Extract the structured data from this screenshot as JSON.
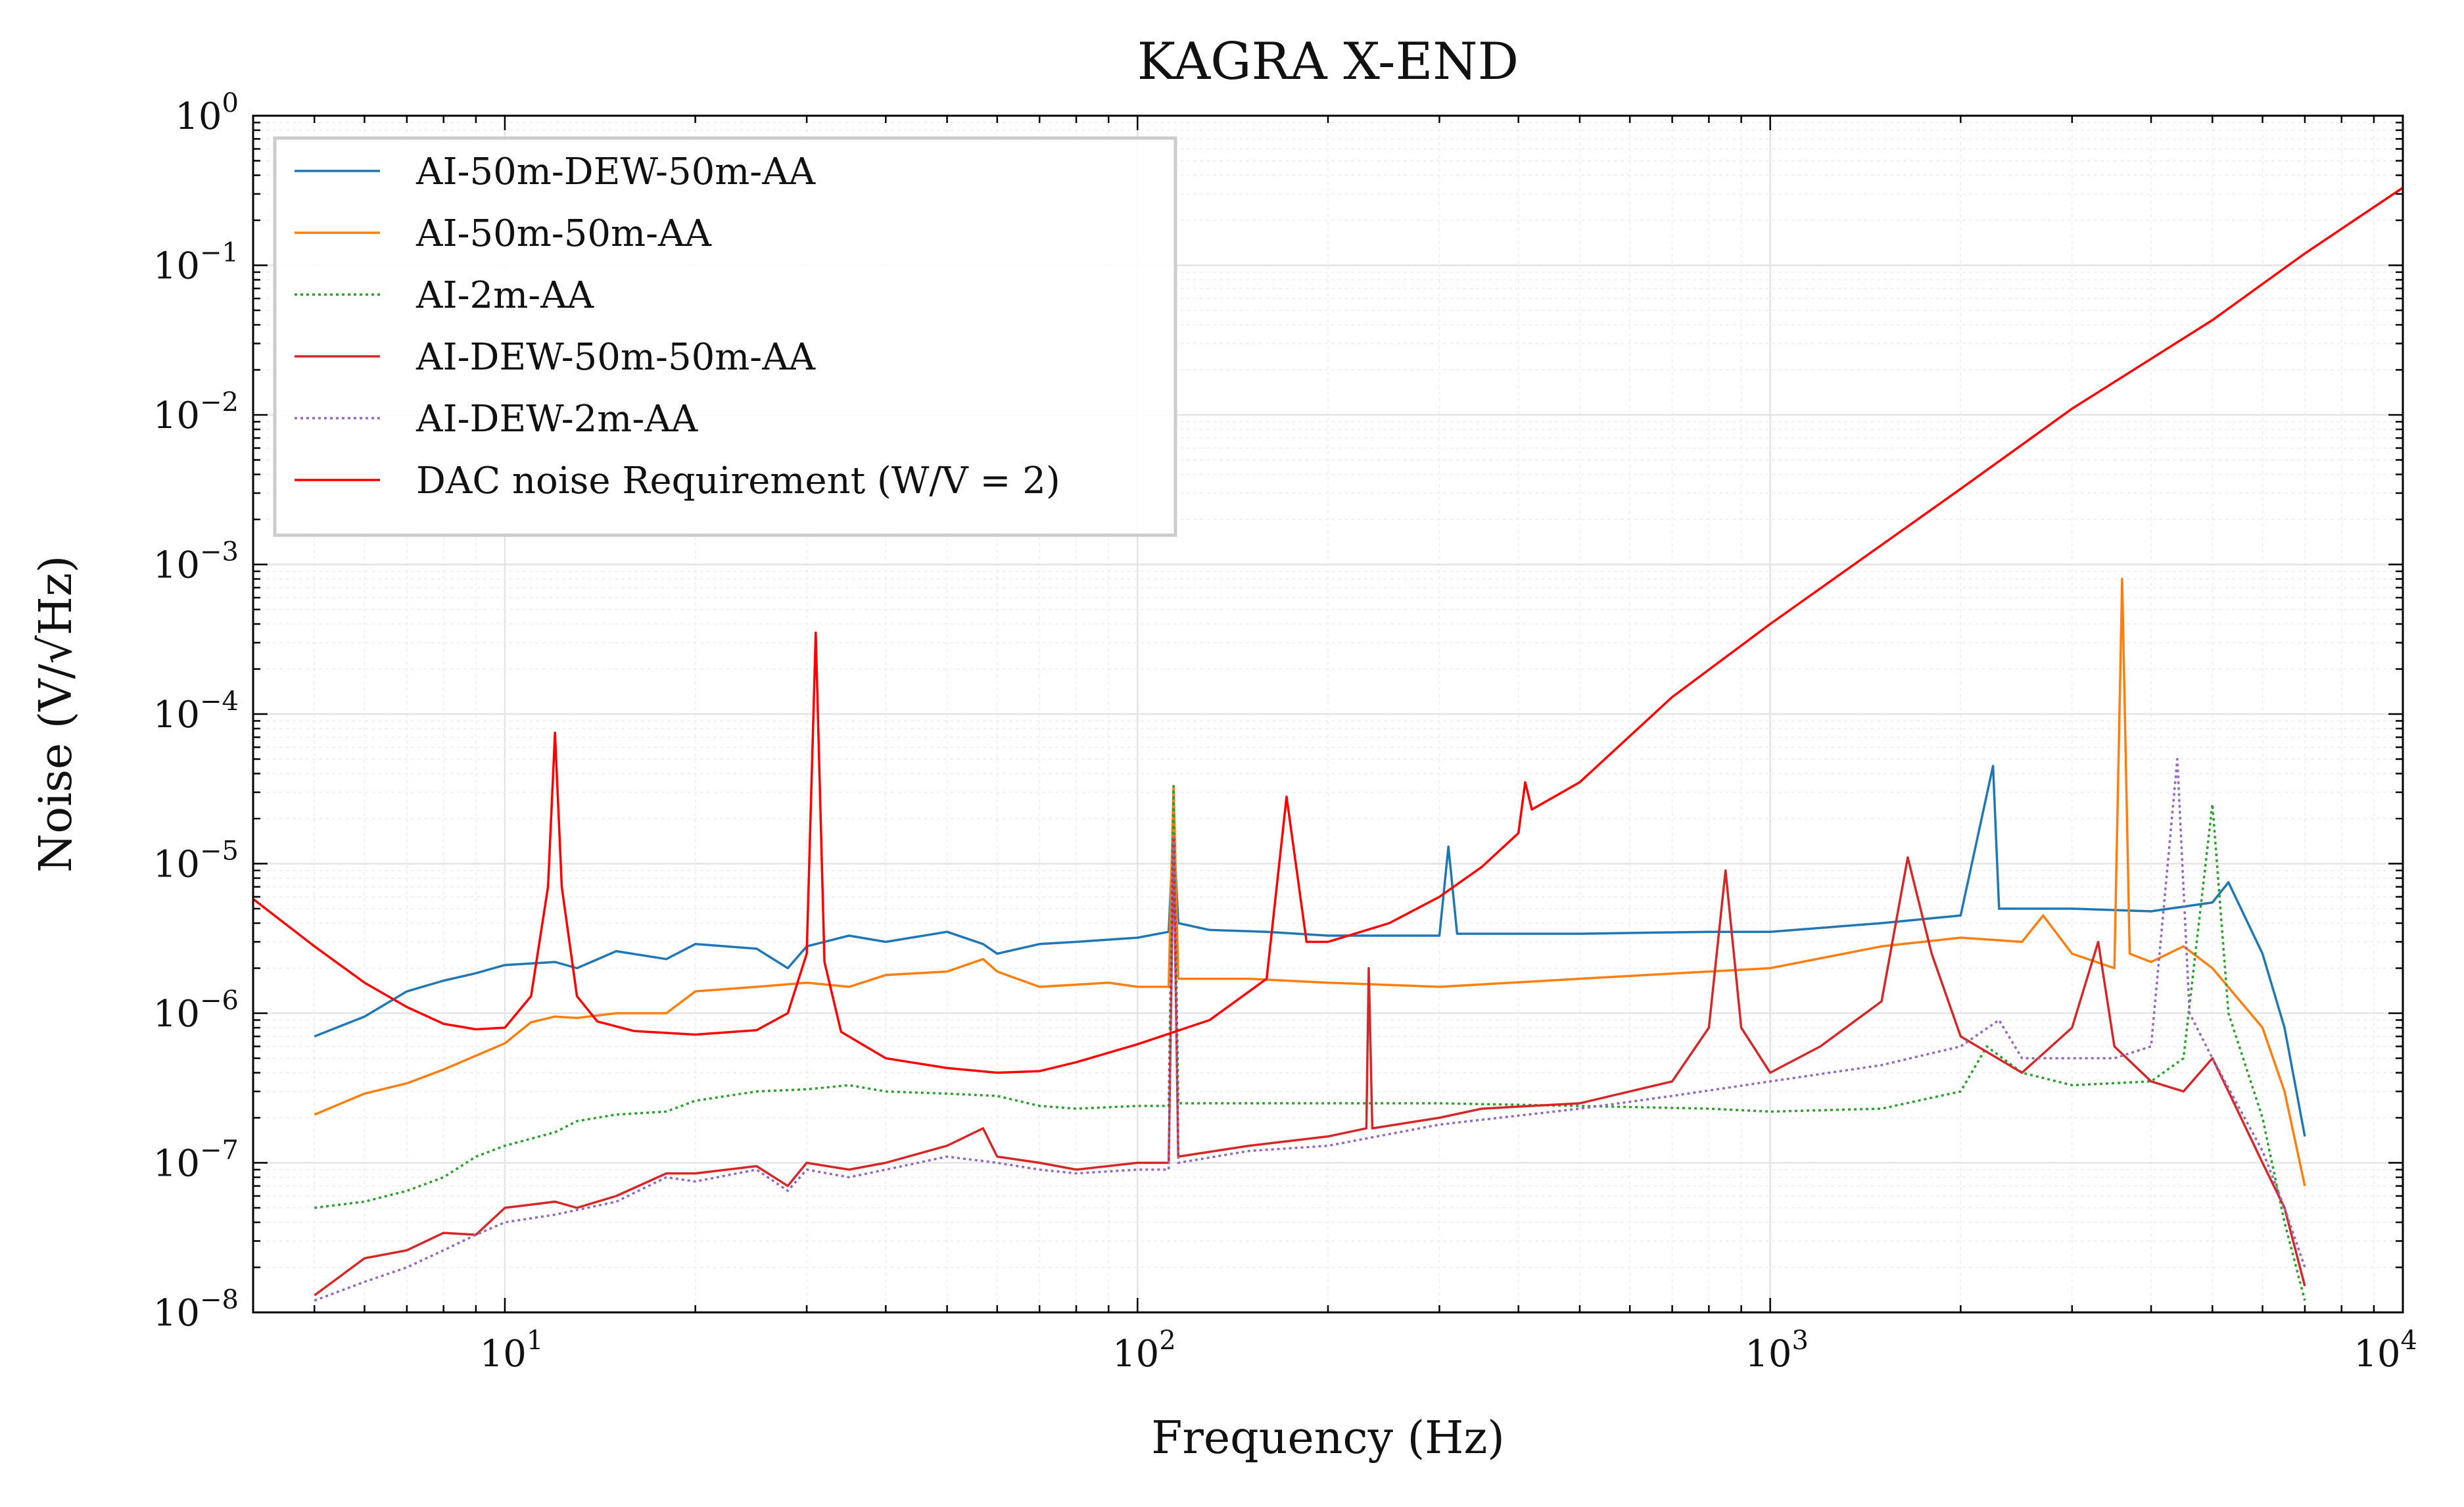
{
  "chart_data": {
    "type": "line",
    "title": "KAGRA X-END",
    "xlabel": "Frequency (Hz)",
    "ylabel": "Noise (V/√Hz)",
    "xscale": "log",
    "yscale": "log",
    "xlim": [
      4,
      10000
    ],
    "ylim": [
      1e-08,
      1
    ],
    "x_ticks": [
      {
        "value": 10,
        "base": "10",
        "exp": "1"
      },
      {
        "value": 100,
        "base": "10",
        "exp": "2"
      },
      {
        "value": 1000,
        "base": "10",
        "exp": "3"
      },
      {
        "value": 10000,
        "base": "10",
        "exp": "4"
      }
    ],
    "y_ticks": [
      {
        "value": 1e-08,
        "base": "10",
        "exp": "−8"
      },
      {
        "value": 1e-07,
        "base": "10",
        "exp": "−7"
      },
      {
        "value": 1e-06,
        "base": "10",
        "exp": "−6"
      },
      {
        "value": 1e-05,
        "base": "10",
        "exp": "−5"
      },
      {
        "value": 0.0001,
        "base": "10",
        "exp": "−4"
      },
      {
        "value": 0.001,
        "base": "10",
        "exp": "−3"
      },
      {
        "value": 0.01,
        "base": "10",
        "exp": "−2"
      },
      {
        "value": 0.1,
        "base": "10",
        "exp": "−1"
      },
      {
        "value": 1,
        "base": "10",
        "exp": "0"
      }
    ],
    "grid": true,
    "legend_position": "top-left",
    "series": [
      {
        "name": "AI-50m-DEW-50m-AA",
        "color": "#1f77b4",
        "style": "solid",
        "points": [
          [
            5,
            7e-07
          ],
          [
            6,
            9.5e-07
          ],
          [
            7,
            1.4e-06
          ],
          [
            8,
            1.65e-06
          ],
          [
            9,
            1.85e-06
          ],
          [
            10,
            2.1e-06
          ],
          [
            12,
            2.2e-06
          ],
          [
            13,
            2e-06
          ],
          [
            15,
            2.6e-06
          ],
          [
            18,
            2.3e-06
          ],
          [
            20,
            2.9e-06
          ],
          [
            25,
            2.7e-06
          ],
          [
            28,
            2e-06
          ],
          [
            30,
            2.8e-06
          ],
          [
            35,
            3.3e-06
          ],
          [
            40,
            3e-06
          ],
          [
            50,
            3.5e-06
          ],
          [
            57,
            2.9e-06
          ],
          [
            60,
            2.5e-06
          ],
          [
            70,
            2.9e-06
          ],
          [
            80,
            3e-06
          ],
          [
            100,
            3.2e-06
          ],
          [
            112,
            3.5e-06
          ],
          [
            114,
            1.7e-05
          ],
          [
            116,
            4e-06
          ],
          [
            130,
            3.6e-06
          ],
          [
            160,
            3.5e-06
          ],
          [
            200,
            3.3e-06
          ],
          [
            300,
            3.3e-06
          ],
          [
            310,
            1.3e-05
          ],
          [
            320,
            3.4e-06
          ],
          [
            500,
            3.4e-06
          ],
          [
            800,
            3.5e-06
          ],
          [
            1000,
            3.5e-06
          ],
          [
            1500,
            4e-06
          ],
          [
            2000,
            4.5e-06
          ],
          [
            2250,
            4.5e-05
          ],
          [
            2300,
            5e-06
          ],
          [
            3000,
            5e-06
          ],
          [
            4000,
            4.8e-06
          ],
          [
            5000,
            5.5e-06
          ],
          [
            5300,
            7.5e-06
          ],
          [
            6000,
            2.5e-06
          ],
          [
            6500,
            8e-07
          ],
          [
            7000,
            1.5e-07
          ]
        ]
      },
      {
        "name": "AI-50m-50m-AA",
        "color": "#ff7f0e",
        "style": "solid",
        "points": [
          [
            5,
            2.1e-07
          ],
          [
            6,
            2.9e-07
          ],
          [
            7,
            3.4e-07
          ],
          [
            8,
            4.2e-07
          ],
          [
            9,
            5.2e-07
          ],
          [
            10,
            6.3e-07
          ],
          [
            11,
            8.7e-07
          ],
          [
            12,
            9.5e-07
          ],
          [
            13,
            9.3e-07
          ],
          [
            15,
            1e-06
          ],
          [
            18,
            1e-06
          ],
          [
            20,
            1.4e-06
          ],
          [
            25,
            1.5e-06
          ],
          [
            30,
            1.6e-06
          ],
          [
            35,
            1.5e-06
          ],
          [
            40,
            1.8e-06
          ],
          [
            50,
            1.9e-06
          ],
          [
            57,
            2.3e-06
          ],
          [
            60,
            1.9e-06
          ],
          [
            70,
            1.5e-06
          ],
          [
            90,
            1.6e-06
          ],
          [
            100,
            1.5e-06
          ],
          [
            112,
            1.5e-06
          ],
          [
            114,
            3.3e-05
          ],
          [
            116,
            1.7e-06
          ],
          [
            150,
            1.7e-06
          ],
          [
            200,
            1.6e-06
          ],
          [
            300,
            1.5e-06
          ],
          [
            500,
            1.7e-06
          ],
          [
            800,
            1.9e-06
          ],
          [
            1000,
            2e-06
          ],
          [
            1500,
            2.8e-06
          ],
          [
            2000,
            3.2e-06
          ],
          [
            2500,
            3e-06
          ],
          [
            2700,
            4.5e-06
          ],
          [
            3000,
            2.5e-06
          ],
          [
            3500,
            2e-06
          ],
          [
            3600,
            0.0008
          ],
          [
            3700,
            2.5e-06
          ],
          [
            4000,
            2.2e-06
          ],
          [
            4500,
            2.8e-06
          ],
          [
            5000,
            2e-06
          ],
          [
            6000,
            8e-07
          ],
          [
            6500,
            3e-07
          ],
          [
            7000,
            7e-08
          ]
        ]
      },
      {
        "name": "AI-2m-AA",
        "color": "#2ca02c",
        "style": "dotted",
        "points": [
          [
            5,
            5e-08
          ],
          [
            6,
            5.5e-08
          ],
          [
            7,
            6.5e-08
          ],
          [
            8,
            8e-08
          ],
          [
            9,
            1.1e-07
          ],
          [
            10,
            1.3e-07
          ],
          [
            12,
            1.6e-07
          ],
          [
            13,
            1.9e-07
          ],
          [
            15,
            2.1e-07
          ],
          [
            18,
            2.2e-07
          ],
          [
            20,
            2.6e-07
          ],
          [
            25,
            3e-07
          ],
          [
            30,
            3.1e-07
          ],
          [
            35,
            3.3e-07
          ],
          [
            40,
            3e-07
          ],
          [
            50,
            2.9e-07
          ],
          [
            60,
            2.8e-07
          ],
          [
            70,
            2.4e-07
          ],
          [
            80,
            2.3e-07
          ],
          [
            100,
            2.4e-07
          ],
          [
            112,
            2.4e-07
          ],
          [
            114,
            3.3e-05
          ],
          [
            116,
            2.5e-07
          ],
          [
            150,
            2.5e-07
          ],
          [
            200,
            2.5e-07
          ],
          [
            300,
            2.5e-07
          ],
          [
            500,
            2.4e-07
          ],
          [
            800,
            2.3e-07
          ],
          [
            1000,
            2.2e-07
          ],
          [
            1500,
            2.3e-07
          ],
          [
            2000,
            3e-07
          ],
          [
            2200,
            6e-07
          ],
          [
            2500,
            4e-07
          ],
          [
            3000,
            3.3e-07
          ],
          [
            4000,
            3.5e-07
          ],
          [
            4500,
            5e-07
          ],
          [
            5000,
            2.5e-05
          ],
          [
            5300,
            1e-06
          ],
          [
            6000,
            2e-07
          ],
          [
            6500,
            4e-08
          ],
          [
            7000,
            1.2e-08
          ]
        ]
      },
      {
        "name": "AI-DEW-50m-50m-AA",
        "color": "#d62728",
        "style": "solid",
        "points": [
          [
            5,
            1.3e-08
          ],
          [
            6,
            2.3e-08
          ],
          [
            7,
            2.6e-08
          ],
          [
            8,
            3.4e-08
          ],
          [
            9,
            3.3e-08
          ],
          [
            10,
            5e-08
          ],
          [
            12,
            5.5e-08
          ],
          [
            13,
            5e-08
          ],
          [
            15,
            6e-08
          ],
          [
            18,
            8.5e-08
          ],
          [
            20,
            8.5e-08
          ],
          [
            25,
            9.5e-08
          ],
          [
            28,
            7e-08
          ],
          [
            30,
            1e-07
          ],
          [
            35,
            9e-08
          ],
          [
            40,
            1e-07
          ],
          [
            50,
            1.3e-07
          ],
          [
            57,
            1.7e-07
          ],
          [
            60,
            1.1e-07
          ],
          [
            70,
            1e-07
          ],
          [
            80,
            9e-08
          ],
          [
            100,
            1e-07
          ],
          [
            112,
            1e-07
          ],
          [
            114,
            1.5e-05
          ],
          [
            116,
            1.1e-07
          ],
          [
            150,
            1.3e-07
          ],
          [
            200,
            1.5e-07
          ],
          [
            230,
            1.7e-07
          ],
          [
            232,
            2e-06
          ],
          [
            235,
            1.7e-07
          ],
          [
            300,
            2e-07
          ],
          [
            350,
            2.3e-07
          ],
          [
            500,
            2.5e-07
          ],
          [
            700,
            3.5e-07
          ],
          [
            800,
            8e-07
          ],
          [
            850,
            9e-06
          ],
          [
            900,
            8e-07
          ],
          [
            1000,
            4e-07
          ],
          [
            1200,
            6e-07
          ],
          [
            1500,
            1.2e-06
          ],
          [
            1650,
            1.1e-05
          ],
          [
            1800,
            2.5e-06
          ],
          [
            2000,
            7e-07
          ],
          [
            2500,
            4e-07
          ],
          [
            3000,
            8e-07
          ],
          [
            3300,
            3e-06
          ],
          [
            3500,
            6e-07
          ],
          [
            4000,
            3.5e-07
          ],
          [
            4500,
            3e-07
          ],
          [
            5000,
            5e-07
          ],
          [
            5300,
            3e-07
          ],
          [
            6000,
            1e-07
          ],
          [
            6500,
            5e-08
          ],
          [
            7000,
            1.5e-08
          ]
        ]
      },
      {
        "name": "AI-DEW-2m-AA",
        "color": "#9467bd",
        "style": "dotted",
        "points": [
          [
            5,
            1.2e-08
          ],
          [
            6,
            1.6e-08
          ],
          [
            7,
            2e-08
          ],
          [
            8,
            2.6e-08
          ],
          [
            9,
            3.3e-08
          ],
          [
            10,
            4e-08
          ],
          [
            12,
            4.5e-08
          ],
          [
            15,
            5.5e-08
          ],
          [
            18,
            8e-08
          ],
          [
            20,
            7.5e-08
          ],
          [
            25,
            9e-08
          ],
          [
            28,
            6.5e-08
          ],
          [
            30,
            9e-08
          ],
          [
            35,
            8e-08
          ],
          [
            40,
            9e-08
          ],
          [
            50,
            1.1e-07
          ],
          [
            60,
            1e-07
          ],
          [
            70,
            9e-08
          ],
          [
            80,
            8.5e-08
          ],
          [
            100,
            9e-08
          ],
          [
            112,
            9e-08
          ],
          [
            114,
            1.5e-05
          ],
          [
            116,
            1e-07
          ],
          [
            150,
            1.2e-07
          ],
          [
            200,
            1.3e-07
          ],
          [
            300,
            1.8e-07
          ],
          [
            500,
            2.3e-07
          ],
          [
            700,
            2.8e-07
          ],
          [
            1000,
            3.5e-07
          ],
          [
            1500,
            4.5e-07
          ],
          [
            2000,
            6e-07
          ],
          [
            2300,
            9e-07
          ],
          [
            2500,
            5e-07
          ],
          [
            3000,
            5e-07
          ],
          [
            3500,
            5e-07
          ],
          [
            4000,
            6e-07
          ],
          [
            4400,
            5e-05
          ],
          [
            4600,
            1e-06
          ],
          [
            5000,
            5e-07
          ],
          [
            6000,
            1.2e-07
          ],
          [
            6500,
            5e-08
          ],
          [
            7000,
            2e-08
          ]
        ]
      },
      {
        "name": "DAC noise Requirement (W/V = 2)",
        "color": "#ff0000",
        "style": "solid",
        "points": [
          [
            4,
            5.8e-06
          ],
          [
            5,
            2.8e-06
          ],
          [
            6,
            1.6e-06
          ],
          [
            7,
            1.1e-06
          ],
          [
            8,
            8.5e-07
          ],
          [
            9,
            7.8e-07
          ],
          [
            10,
            8e-07
          ],
          [
            11,
            1.3e-06
          ],
          [
            11.7,
            7e-06
          ],
          [
            12,
            7.5e-05
          ],
          [
            12.3,
            7e-06
          ],
          [
            13,
            1.3e-06
          ],
          [
            14,
            8.8e-07
          ],
          [
            16,
            7.6e-07
          ],
          [
            20,
            7.2e-07
          ],
          [
            25,
            7.7e-07
          ],
          [
            28,
            1e-06
          ],
          [
            30,
            2.5e-06
          ],
          [
            31,
            0.00035
          ],
          [
            32,
            2.2e-06
          ],
          [
            34,
            7.5e-07
          ],
          [
            40,
            5e-07
          ],
          [
            50,
            4.3e-07
          ],
          [
            60,
            4e-07
          ],
          [
            70,
            4.1e-07
          ],
          [
            80,
            4.7e-07
          ],
          [
            100,
            6.2e-07
          ],
          [
            130,
            9e-07
          ],
          [
            160,
            1.7e-06
          ],
          [
            172,
            2.8e-05
          ],
          [
            185,
            3e-06
          ],
          [
            200,
            3e-06
          ],
          [
            250,
            4e-06
          ],
          [
            300,
            6e-06
          ],
          [
            350,
            9.5e-06
          ],
          [
            400,
            1.6e-05
          ],
          [
            410,
            3.5e-05
          ],
          [
            420,
            2.3e-05
          ],
          [
            500,
            3.5e-05
          ],
          [
            700,
            0.00013
          ],
          [
            1000,
            0.0004
          ],
          [
            2000,
            0.0032
          ],
          [
            3000,
            0.011
          ],
          [
            5000,
            0.043
          ],
          [
            7000,
            0.12
          ],
          [
            10000,
            0.33
          ]
        ]
      }
    ]
  }
}
